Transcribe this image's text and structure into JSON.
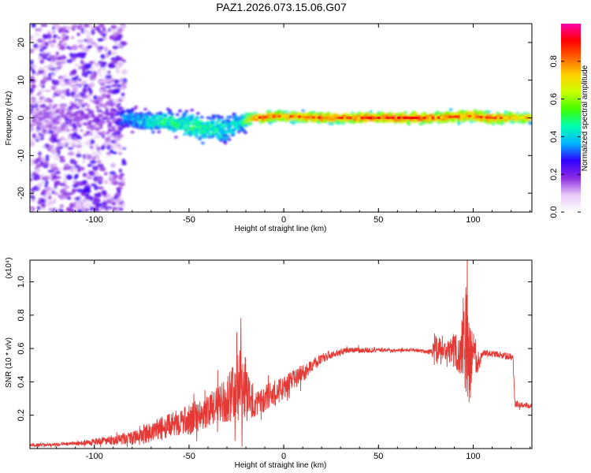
{
  "title": "PAZ1.2026.073.15.06.G07",
  "colors": {
    "snr_line": "#e53935",
    "frame": "#000000",
    "background": "#ffffff"
  },
  "chart_data": [
    {
      "type": "heatmap",
      "xlabel": "Height of straight line (km)",
      "ylabel": "Frequency (Hz)",
      "xlim": [
        -134,
        131
      ],
      "ylim": [
        -25,
        25
      ],
      "xticks": [
        -100,
        -50,
        0,
        50,
        100
      ],
      "yticks": [
        -20,
        -10,
        0,
        10,
        20
      ],
      "colorbar": {
        "label": "Normalized spectral amplitude",
        "range": [
          0,
          1
        ],
        "ticks": [
          "0.0",
          "0.2",
          "0.4",
          "0.6",
          "0.8"
        ],
        "tick_values": [
          0.0,
          0.2,
          0.4,
          0.6,
          0.8
        ],
        "colormap": [
          "#ffffff",
          "#e6c8f5",
          "#8a2be2",
          "#3000ff",
          "#00b4ff",
          "#00ffb4",
          "#40ff00",
          "#c8ff00",
          "#ffd200",
          "#ff6400",
          "#ff0000",
          "#ff00aa"
        ]
      },
      "description_points": [
        {
          "x": -134,
          "y_center": 0,
          "amplitude": 0.15,
          "spread": 25
        },
        {
          "x": -90,
          "y_center": 0,
          "amplitude": 0.2,
          "spread": 25
        },
        {
          "x": -85,
          "y_center": 0,
          "amplitude": 0.35,
          "spread": 3
        },
        {
          "x": -70,
          "y_center": -1,
          "amplitude": 0.45,
          "spread": 3
        },
        {
          "x": -60,
          "y_center": -1,
          "amplitude": 0.5,
          "spread": 3
        },
        {
          "x": -50,
          "y_center": -2,
          "amplitude": 0.5,
          "spread": 4
        },
        {
          "x": -40,
          "y_center": -3,
          "amplitude": 0.5,
          "spread": 4
        },
        {
          "x": -30,
          "y_center": -3,
          "amplitude": 0.45,
          "spread": 4
        },
        {
          "x": -22,
          "y_center": -1,
          "amplitude": 0.45,
          "spread": 3
        },
        {
          "x": -15,
          "y_center": 0,
          "amplitude": 0.85,
          "spread": 1.5
        },
        {
          "x": 0,
          "y_center": 0.5,
          "amplitude": 0.8,
          "spread": 1.5
        },
        {
          "x": 20,
          "y_center": 0,
          "amplitude": 0.85,
          "spread": 1.5
        },
        {
          "x": 40,
          "y_center": 0,
          "amplitude": 0.85,
          "spread": 1.5
        },
        {
          "x": 60,
          "y_center": 0,
          "amplitude": 0.9,
          "spread": 1.5
        },
        {
          "x": 80,
          "y_center": 0,
          "amplitude": 0.85,
          "spread": 1.5
        },
        {
          "x": 97,
          "y_center": 0.5,
          "amplitude": 0.8,
          "spread": 2
        },
        {
          "x": 110,
          "y_center": 0,
          "amplitude": 0.85,
          "spread": 1.5
        },
        {
          "x": 131,
          "y_center": 0,
          "amplitude": 0.75,
          "spread": 1.5
        }
      ]
    },
    {
      "type": "line",
      "xlabel": "Height of straight line (km)",
      "ylabel": "SNR (10 * v/v)",
      "y_scale_label": "(x10⁴)",
      "xlim": [
        -134,
        131
      ],
      "ylim": [
        0,
        1.13
      ],
      "xticks": [
        -100,
        -50,
        0,
        50,
        100
      ],
      "yticks": [
        0.2,
        0.4,
        0.6,
        0.8,
        1.0
      ],
      "series": [
        {
          "x": [
            -134,
            -110,
            -100,
            -90,
            -80,
            -75,
            -70,
            -65,
            -60,
            -55,
            -50,
            -45,
            -40,
            -35,
            -30,
            -25,
            -22,
            -20,
            -17,
            -15,
            -10,
            -5,
            0,
            5,
            10,
            15,
            20,
            25,
            30,
            35,
            40,
            45,
            50,
            55,
            60,
            65,
            70,
            75,
            78,
            80,
            83,
            86,
            90,
            93,
            96,
            98,
            100,
            102,
            105,
            110,
            115,
            120,
            121,
            122,
            125,
            131
          ],
          "y": [
            0.02,
            0.03,
            0.04,
            0.05,
            0.06,
            0.08,
            0.1,
            0.12,
            0.14,
            0.16,
            0.17,
            0.2,
            0.22,
            0.26,
            0.3,
            0.35,
            0.38,
            0.36,
            0.3,
            0.27,
            0.3,
            0.33,
            0.37,
            0.41,
            0.45,
            0.5,
            0.54,
            0.56,
            0.58,
            0.59,
            0.59,
            0.59,
            0.59,
            0.59,
            0.59,
            0.59,
            0.59,
            0.58,
            0.58,
            0.6,
            0.57,
            0.58,
            0.6,
            0.55,
            0.7,
            0.5,
            0.62,
            0.48,
            0.57,
            0.57,
            0.56,
            0.55,
            0.55,
            0.27,
            0.26,
            0.26
          ],
          "noise_amplitude": [
            0.01,
            0.01,
            0.02,
            0.03,
            0.04,
            0.06,
            0.06,
            0.07,
            0.07,
            0.08,
            0.09,
            0.1,
            0.1,
            0.12,
            0.14,
            0.18,
            0.22,
            0.2,
            0.12,
            0.08,
            0.08,
            0.08,
            0.07,
            0.06,
            0.05,
            0.04,
            0.03,
            0.02,
            0.02,
            0.015,
            0.015,
            0.015,
            0.01,
            0.01,
            0.01,
            0.01,
            0.01,
            0.01,
            0.02,
            0.12,
            0.08,
            0.05,
            0.12,
            0.1,
            0.35,
            0.3,
            0.1,
            0.05,
            0.02,
            0.02,
            0.02,
            0.02,
            0.02,
            0.02,
            0.02,
            0.02
          ]
        }
      ]
    }
  ]
}
